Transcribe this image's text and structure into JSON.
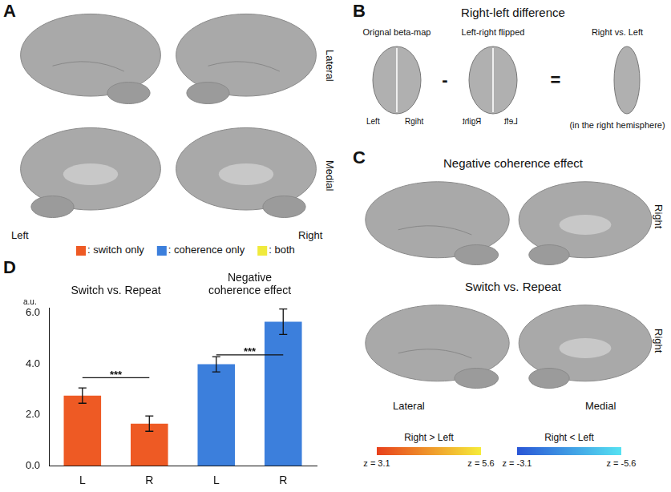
{
  "panels": {
    "A": {
      "label": "A",
      "views": [
        "Lateral",
        "Medial"
      ],
      "hemispheres": [
        "Left",
        "Right"
      ],
      "legend": [
        {
          "label": ": switch only",
          "color": "#ee5a24"
        },
        {
          "label": ": coherence only",
          "color": "#3c7fdc"
        },
        {
          "label": ": both",
          "color": "#f0ea3c"
        }
      ]
    },
    "B": {
      "label": "B",
      "title": "Right-left difference",
      "images": [
        "Orignal beta-map",
        "Left-right flipped",
        "Right vs. Left"
      ],
      "note": "(in the right hemisphere)",
      "original_sides": [
        "Left",
        "Rgiht"
      ],
      "flipped_sides": [
        "Rgiht",
        "Left"
      ],
      "operators": [
        "-",
        "="
      ]
    },
    "C": {
      "label": "C",
      "maps": [
        {
          "title": "Negative coherence effect",
          "side": "Right"
        },
        {
          "title": "Switch vs. Repeat",
          "side": "Right"
        }
      ],
      "views": [
        "Lateral",
        "Medial"
      ],
      "colorbars": [
        {
          "label": "Right > Left",
          "colors": [
            "#e8401c",
            "#f6ec3a"
          ],
          "range": [
            3.1,
            5.6
          ],
          "ticks": [
            {
              "value": 3.1,
              "label": "z = 3.1"
            },
            {
              "value": 5.6,
              "label": "z = 5.6"
            }
          ]
        },
        {
          "label": "Right < Left",
          "colors": [
            "#2a56d6",
            "#56e2f2"
          ],
          "range": [
            -3.1,
            -5.6
          ],
          "ticks": [
            {
              "value": -3.1,
              "label": "z = -3.1"
            },
            {
              "value": -5.6,
              "label": "z = -5.6"
            }
          ]
        }
      ]
    }
  },
  "chart_data": {
    "type": "bar",
    "panel": "D",
    "y_unit": "a.u.",
    "grid": false,
    "ylim": [
      0,
      6.2
    ],
    "yticks": [
      {
        "value": 0,
        "label": "0.0"
      },
      {
        "value": 2,
        "label": "2.0"
      },
      {
        "value": 4,
        "label": "4.0"
      },
      {
        "value": 6,
        "label": "6.0"
      }
    ],
    "groups": [
      {
        "title": "Switch vs. Repeat",
        "color": "#ee5a24",
        "categories": [
          "L",
          "R"
        ],
        "values": [
          2.75,
          1.65
        ],
        "errors": [
          0.3,
          0.3
        ],
        "significance": {
          "label": "***",
          "y": 3.45
        }
      },
      {
        "title": "Negative coherence effect",
        "color": "#3c7fdc",
        "categories": [
          "L",
          "R"
        ],
        "values": [
          3.98,
          5.65
        ],
        "errors": [
          0.3,
          0.5
        ],
        "significance": {
          "label": "***",
          "y": 4.35
        }
      }
    ]
  }
}
